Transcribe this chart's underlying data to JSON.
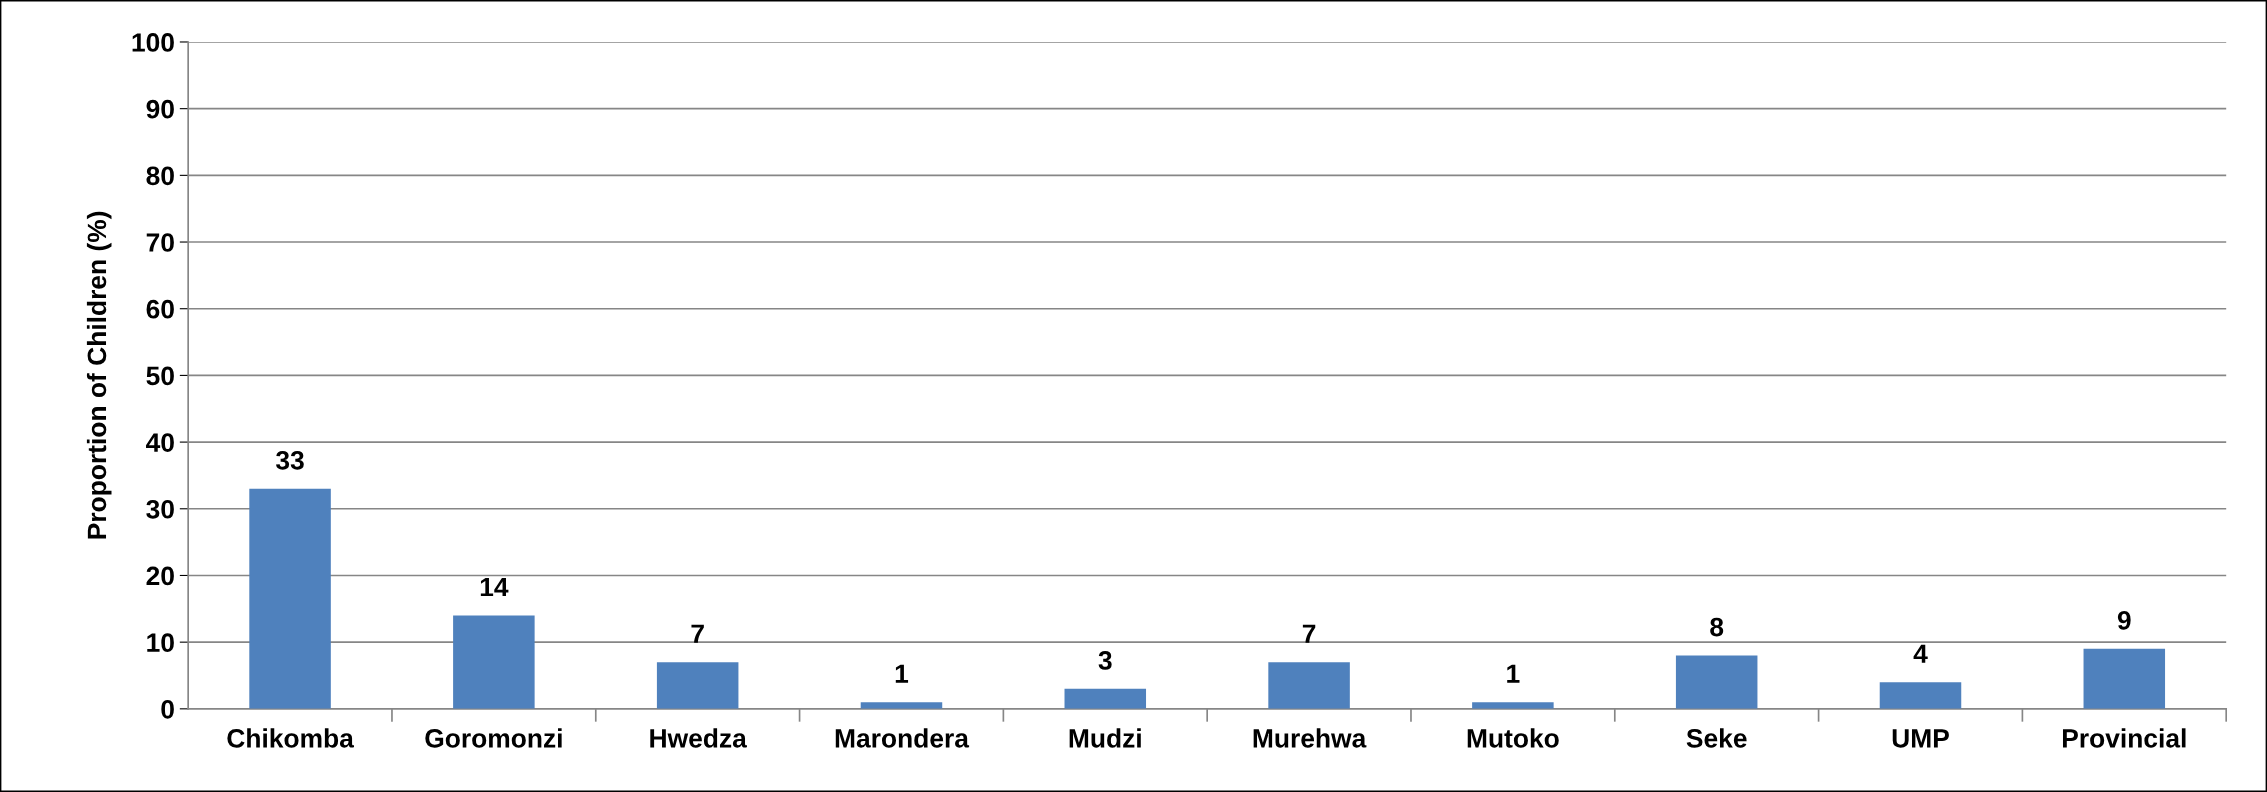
{
  "chart_data": {
    "type": "bar",
    "ylabel": "Proportion of Children (%)",
    "categories": [
      "Chikomba",
      "Goromonzi",
      "Hwedza",
      "Marondera",
      "Mudzi",
      "Murehwa",
      "Mutoko",
      "Seke",
      "UMP",
      "Provincial"
    ],
    "values": [
      33,
      14,
      7,
      1,
      3,
      7,
      1,
      8,
      4,
      9
    ],
    "color": "#4f81bd",
    "ylim": [
      0,
      100
    ],
    "yticks": [
      0,
      10,
      20,
      30,
      40,
      50,
      60,
      70,
      80,
      90,
      100
    ],
    "grid": "y",
    "data_labels": true
  }
}
